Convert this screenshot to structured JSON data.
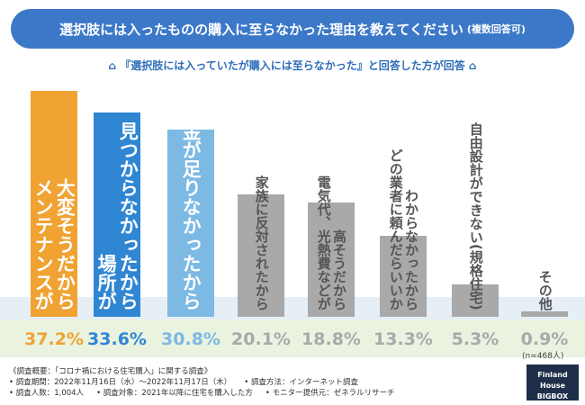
{
  "chart_data": {
    "type": "bar",
    "title": "選択肢には入ったものの購入に至らなかった理由を教えてください",
    "title_note": "(複数回答可)",
    "subtitle": "『選択肢には入っていたが購入には至らなかった』と回答した方が回答",
    "categories": [
      [
        "メンテナンスが",
        "大変そうだから"
      ],
      [
        "場所が",
        "見つからなかったから"
      ],
      [
        "資金が足りなかったから"
      ],
      [
        "家族に反対されたから"
      ],
      [
        "電気代、光熱費などが",
        "高そうだから"
      ],
      [
        "どの業者に頼んだらいいか",
        "わからなかったから"
      ],
      [
        "自由設計ができない(規格住宅)"
      ],
      [
        "その他"
      ]
    ],
    "values": [
      37.2,
      33.6,
      30.8,
      20.1,
      18.8,
      13.3,
      5.3,
      0.9
    ],
    "value_labels": [
      "37.2%",
      "33.6%",
      "30.8%",
      "20.1%",
      "18.8%",
      "13.3%",
      "5.3%",
      "0.9%"
    ],
    "colors": [
      "#f0a232",
      "#2f86d3",
      "#7cb9e3",
      "#a9a9a9",
      "#a9a9a9",
      "#a9a9a9",
      "#a9a9a9",
      "#a9a9a9"
    ],
    "note": "(n=468人)"
  },
  "footer": {
    "heading": "《調査概要：「コロナ禍における住宅購入」に関する調査》",
    "items": [
      "調査期間：2022年11月16日（水）～2022年11月17日（木）",
      "調査方法：インターネット調査",
      "調査人数：1,004人",
      "調査対象：2021年以降に住宅を購入した方",
      "モニター提供元：ゼネラルリサーチ"
    ],
    "logo": "Finland House",
    "logo_sub": "BIGBOX"
  }
}
